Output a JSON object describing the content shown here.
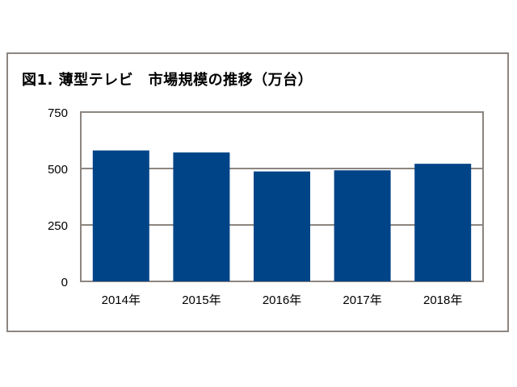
{
  "chart_data": {
    "type": "bar",
    "title": "図1. 薄型テレビ　市場規模の推移（万台）",
    "categories": [
      "2014年",
      "2015年",
      "2016年",
      "2017年",
      "2018年"
    ],
    "values": [
      580,
      571,
      487,
      492,
      521
    ],
    "ylim": [
      0,
      750
    ],
    "yticks": [
      0,
      250,
      500,
      750
    ],
    "xlabel": "",
    "ylabel": "",
    "grid": true,
    "bar_color": "#004488",
    "grid_color": "#8c8580"
  }
}
